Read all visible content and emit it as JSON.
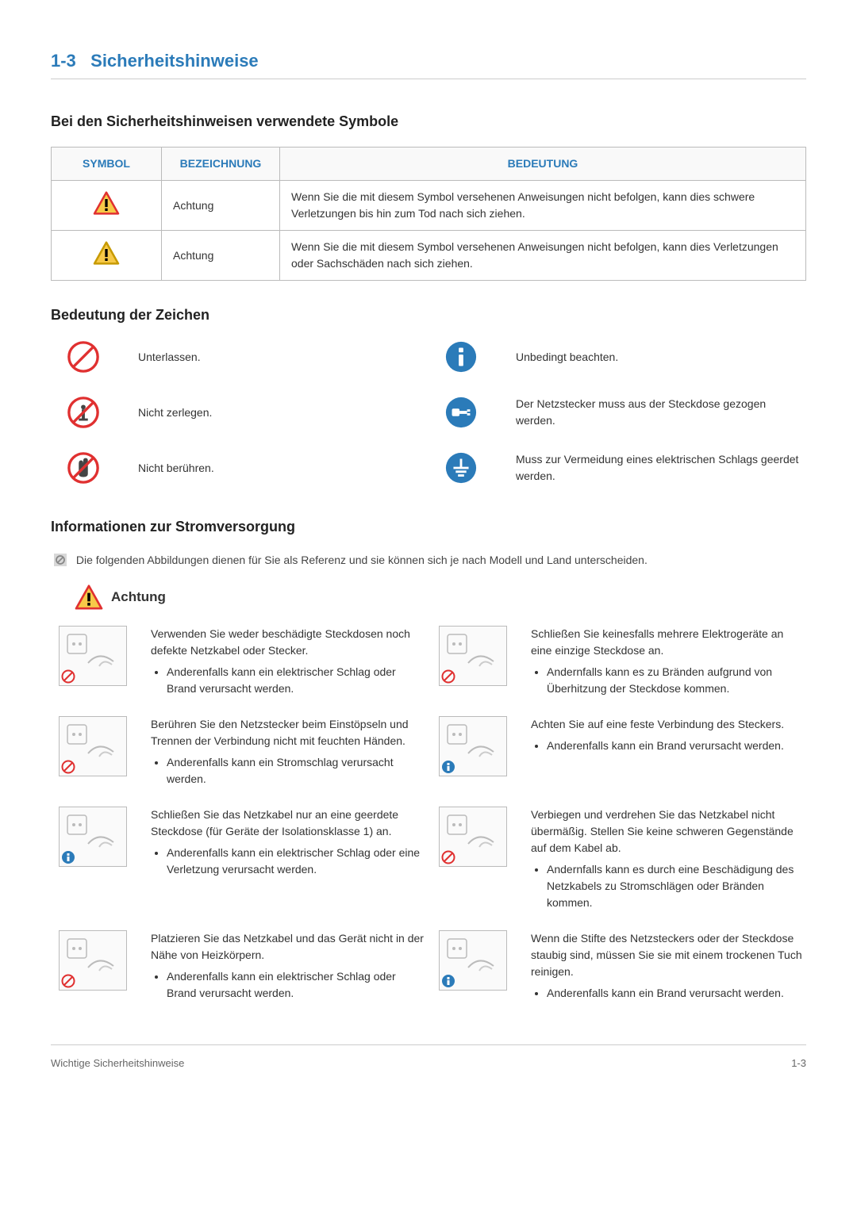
{
  "chapter": {
    "number": "1-3",
    "title": "Sicherheitshinweise"
  },
  "section_symbols_heading": "Bei den Sicherheitshinweisen verwendete Symbole",
  "symbol_table": {
    "headers": {
      "symbol": "SYMBOL",
      "name": "BEZEICHNUNG",
      "meaning": "BEDEUTUNG"
    },
    "rows": [
      {
        "icon": "warning-triangle-red",
        "name": "Achtung",
        "meaning": "Wenn Sie die mit diesem Symbol versehenen Anweisungen nicht befolgen, kann dies schwere Verletzungen bis hin zum Tod nach sich ziehen."
      },
      {
        "icon": "warning-triangle-yellow",
        "name": "Achtung",
        "meaning": "Wenn Sie die mit diesem Symbol versehenen Anweisungen nicht befolgen, kann dies Verletzungen oder Sachschäden nach sich ziehen."
      }
    ]
  },
  "section_legend_heading": "Bedeutung der Zeichen",
  "legend": [
    {
      "icon": "prohibit-red",
      "text": "Unterlassen.",
      "icon2": "info-blue",
      "text2": "Unbedingt beachten."
    },
    {
      "icon": "no-disassemble-red",
      "text": "Nicht zerlegen.",
      "icon2": "unplug-blue",
      "text2": "Der Netzstecker muss aus der Steckdose gezogen werden."
    },
    {
      "icon": "no-touch-red",
      "text": "Nicht berühren.",
      "icon2": "ground-blue",
      "text2": "Muss zur Vermeidung eines elektrischen Schlags geerdet werden."
    }
  ],
  "section_power_heading": "Informationen zur Stromversorgung",
  "power_note": "Die folgenden Abbildungen dienen für Sie als Referenz und sie können sich je nach Modell und Land unterscheiden.",
  "achtung_label": "Achtung",
  "power_items": [
    {
      "badge": "prohibit",
      "text": "Verwenden Sie weder beschädigte Steckdosen noch defekte Netzkabel oder Stecker.",
      "bullets": [
        "Anderenfalls kann ein elektrischer Schlag oder Brand verursacht werden."
      ]
    },
    {
      "badge": "prohibit",
      "text": "Schließen Sie keinesfalls mehrere Elektrogeräte an eine einzige Steckdose an.",
      "bullets": [
        "Andernfalls kann es zu Bränden aufgrund von Überhitzung der Steckdose kommen."
      ]
    },
    {
      "badge": "prohibit",
      "text": "Berühren Sie den Netzstecker beim Einstöpseln und Trennen der Verbindung nicht mit feuchten Händen.",
      "bullets": [
        "Anderenfalls kann ein Stromschlag verursacht werden."
      ]
    },
    {
      "badge": "info",
      "text": "Achten Sie auf eine feste Verbindung des Steckers.",
      "bullets": [
        "Anderenfalls kann ein Brand verursacht werden."
      ]
    },
    {
      "badge": "info",
      "text": "Schließen Sie das Netzkabel nur an eine geerdete Steckdose (für Geräte der Isolationsklasse 1) an.",
      "bullets": [
        "Anderenfalls kann ein elektrischer Schlag oder eine Verletzung verursacht werden."
      ]
    },
    {
      "badge": "prohibit",
      "text": "Verbiegen und verdrehen Sie das Netzkabel nicht übermäßig. Stellen Sie keine schweren Gegenstände auf dem Kabel ab.",
      "bullets": [
        "Andernfalls kann es durch eine Beschädigung des Netzkabels zu Stromschlägen oder Bränden kommen."
      ]
    },
    {
      "badge": "prohibit",
      "text": "Platzieren Sie das Netzkabel und das Gerät nicht in der Nähe von Heizkörpern.",
      "bullets": [
        "Anderenfalls kann ein elektrischer Schlag oder Brand verursacht werden."
      ]
    },
    {
      "badge": "info",
      "text": "Wenn die Stifte des Netzsteckers oder der Steckdose staubig sind, müssen Sie sie mit einem trockenen Tuch reinigen.",
      "bullets": [
        "Anderenfalls kann ein Brand verursacht werden."
      ]
    }
  ],
  "footer": {
    "left": "Wichtige Sicherheitshinweise",
    "right": "1-3"
  },
  "colors": {
    "heading_blue": "#2b7bb9",
    "warn_red": "#e03030",
    "warn_yellow": "#f7c948",
    "info_blue": "#2b7bb9",
    "prohibit_red": "#e03030",
    "badge_info": "#2b7bb9"
  }
}
